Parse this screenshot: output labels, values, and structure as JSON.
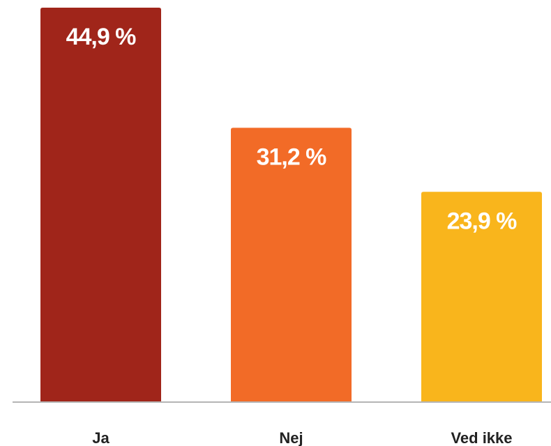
{
  "chart_data": {
    "type": "bar",
    "categories": [
      "Ja",
      "Nej",
      "Ved ikke"
    ],
    "values": [
      44.9,
      31.2,
      23.9
    ],
    "value_labels": [
      "44,9 %",
      "31,2 %",
      "23,9 %"
    ],
    "colors": [
      "#a0251a",
      "#f26b27",
      "#f9b51c"
    ]
  }
}
